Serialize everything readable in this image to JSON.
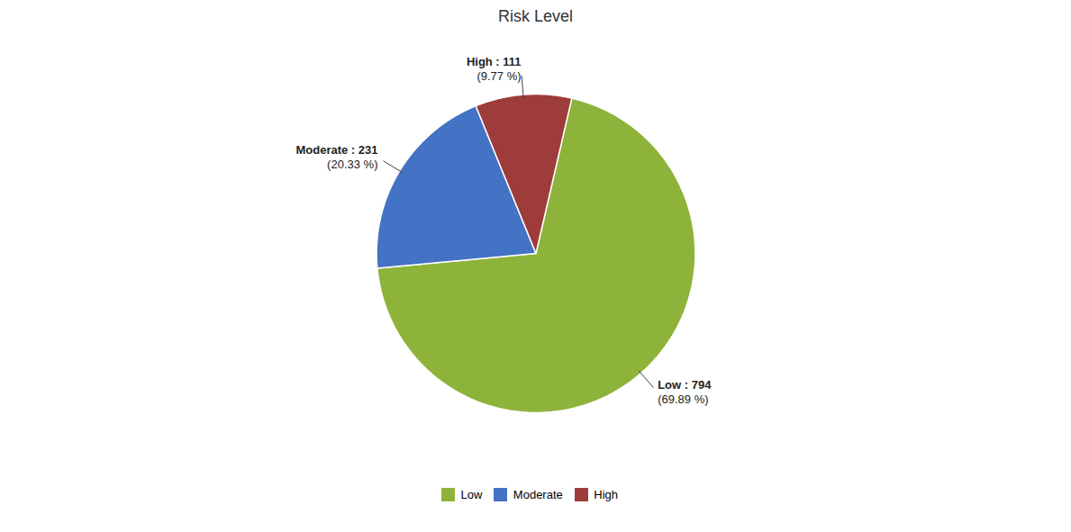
{
  "chart_data": {
    "type": "pie",
    "title": "Risk Level",
    "categories": [
      "Low",
      "Moderate",
      "High"
    ],
    "values": [
      794,
      231,
      111
    ],
    "value_labels": [
      "Low : 794",
      "Moderate : 231",
      "High : 111"
    ],
    "annotations": [
      "(69.89 %)",
      "(20.33 %)",
      "(9.77 %)"
    ],
    "colors": [
      "#8db33a",
      "#4472c4",
      "#9e3b3b"
    ],
    "data_labels": true,
    "legend": "bottom"
  }
}
